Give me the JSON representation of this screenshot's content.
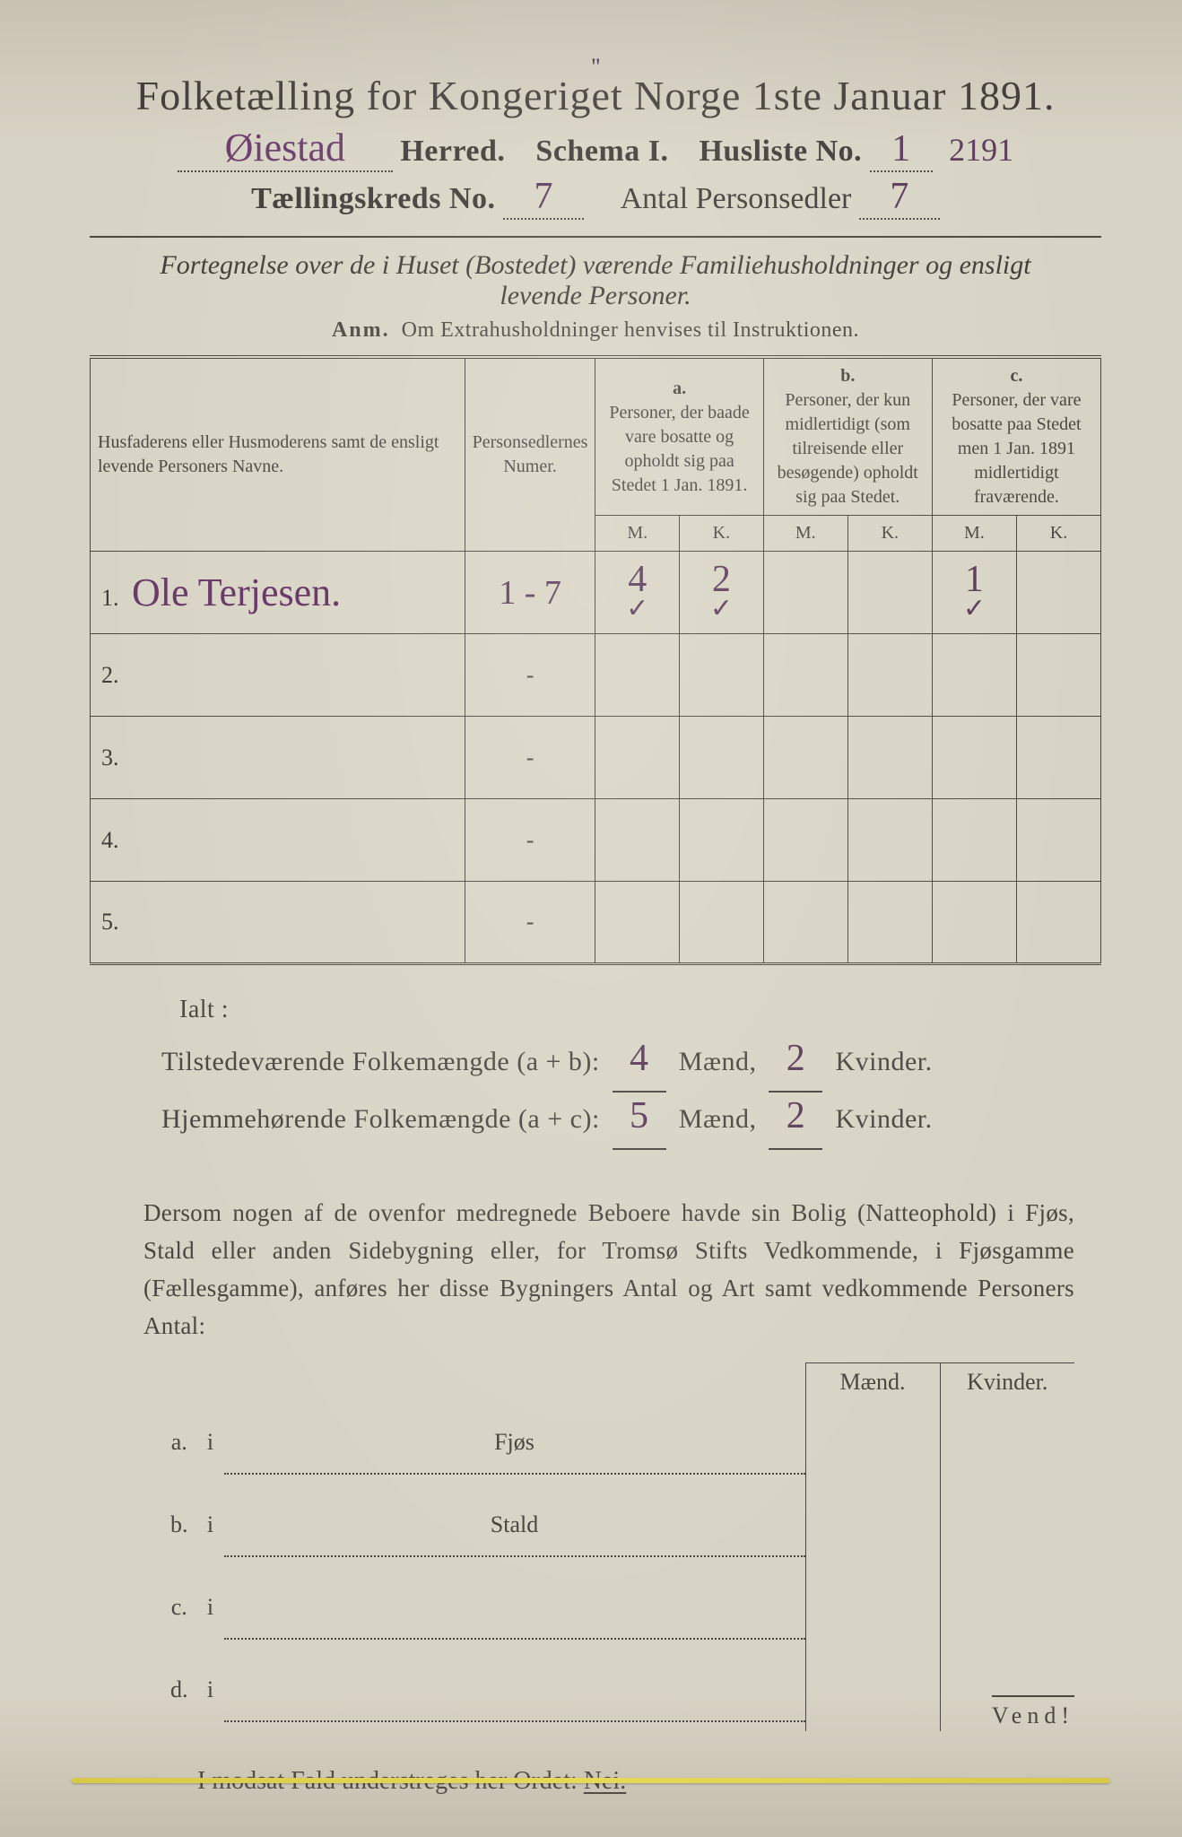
{
  "colors": {
    "paper": "#d8d4c5",
    "ink": "#4a4642",
    "handwriting": "#6a3a6a",
    "background": "#3a3a38",
    "binding": "#e6d95a"
  },
  "header": {
    "title": "Folketælling for Kongeriget Norge 1ste Januar 1891.",
    "herred_hw": "Øiestad",
    "herred_label": "Herred.",
    "schema_label": "Schema I.",
    "husliste_label": "Husliste No.",
    "husliste_hw": "1",
    "margin_note": "2191",
    "kreds_label": "Tællingskreds No.",
    "kreds_hw": "7",
    "antal_label": "Antal Personsedler",
    "antal_hw": "7",
    "tick": "\""
  },
  "desc": {
    "line1": "Fortegnelse over de i Huset (Bostedet) værende Familiehusholdninger og ensligt",
    "line2": "levende Personer.",
    "anm_label": "Anm.",
    "anm_text": "Om Extrahusholdninger henvises til Instruktionen."
  },
  "table": {
    "col_name": "Husfaderens eller Husmoderens samt de ensligt levende Personers Navne.",
    "col_num": "Personsedlernes Numer.",
    "abc": {
      "a": "a.",
      "b": "b.",
      "c": "c."
    },
    "col_a": "Personer, der baade vare bosatte og opholdt sig paa Stedet 1 Jan. 1891.",
    "col_b": "Personer, der kun midlertidigt (som tilreisende eller besøgende) opholdt sig paa Stedet.",
    "col_c": "Personer, der vare bosatte paa Stedet men 1 Jan. 1891 midlertidigt fraværende.",
    "m": "M.",
    "k": "K.",
    "rows": [
      {
        "idx": "1.",
        "name_hw": "Ole Terjesen.",
        "num": "1 - 7",
        "a_m": "4",
        "a_k": "2",
        "b_m": "",
        "b_k": "",
        "c_m": "1",
        "c_k": "",
        "check_a_m": "✓",
        "check_a_k": "✓",
        "check_c_m": "✓"
      },
      {
        "idx": "2.",
        "name_hw": "",
        "num": "-",
        "a_m": "",
        "a_k": "",
        "b_m": "",
        "b_k": "",
        "c_m": "",
        "c_k": ""
      },
      {
        "idx": "3.",
        "name_hw": "",
        "num": "-",
        "a_m": "",
        "a_k": "",
        "b_m": "",
        "b_k": "",
        "c_m": "",
        "c_k": ""
      },
      {
        "idx": "4.",
        "name_hw": "",
        "num": "-",
        "a_m": "",
        "a_k": "",
        "b_m": "",
        "b_k": "",
        "c_m": "",
        "c_k": ""
      },
      {
        "idx": "5.",
        "name_hw": "",
        "num": "-",
        "a_m": "",
        "a_k": "",
        "b_m": "",
        "b_k": "",
        "c_m": "",
        "c_k": ""
      }
    ]
  },
  "totals": {
    "ialt": "Ialt :",
    "line1_label": "Tilstedeværende Folkemængde (a + b):",
    "line1_m": "4",
    "line1_k": "2",
    "line2_label": "Hjemmehørende Folkemængde (a + c):",
    "line2_m": "5",
    "line2_k": "2",
    "maend": "Mænd,",
    "kvinder": "Kvinder."
  },
  "para": "Dersom nogen af de ovenfor medregnede Beboere havde sin Bolig (Natteophold) i Fjøs, Stald eller anden Sidebygning eller, for Tromsø Stifts Vedkommende, i Fjøsgamme (Fællesgamme), anføres her disse Bygningers Antal og Art samt vedkommende Personers Antal:",
  "outbuildings": {
    "head_m": "Mænd.",
    "head_k": "Kvinder.",
    "rows": [
      {
        "lab": "a.",
        "i": "i",
        "name": "Fjøs"
      },
      {
        "lab": "b.",
        "i": "i",
        "name": "Stald"
      },
      {
        "lab": "c.",
        "i": "i",
        "name": ""
      },
      {
        "lab": "d.",
        "i": "i",
        "name": ""
      }
    ]
  },
  "nei": {
    "text": "I modsat Fald understreges her Ordet:",
    "word": "Nei."
  },
  "vend": "Vend!"
}
